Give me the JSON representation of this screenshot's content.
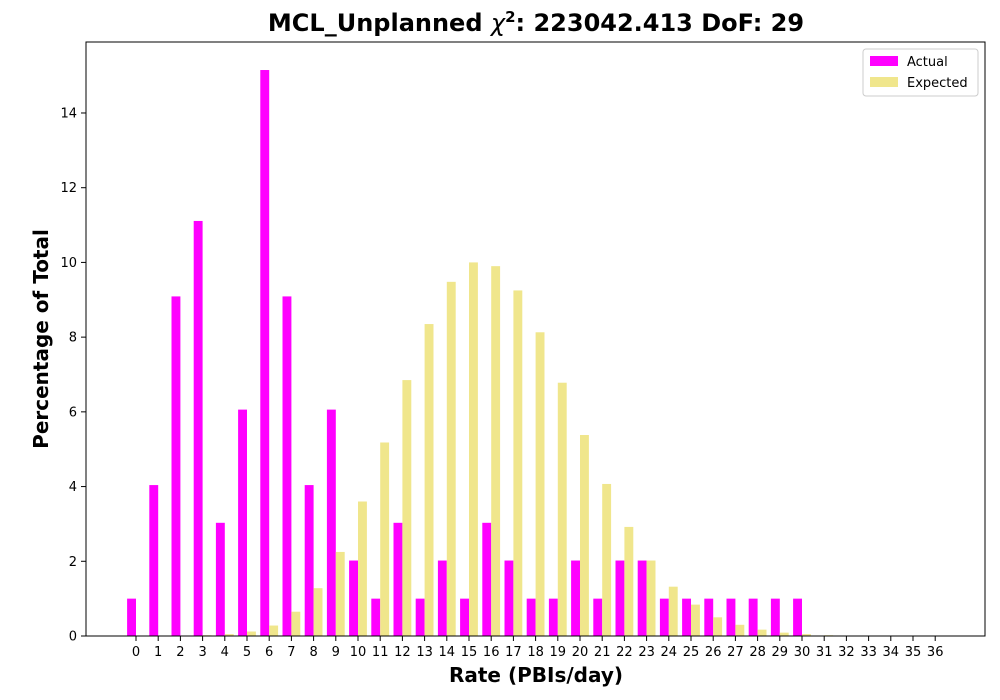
{
  "chart_data": {
    "type": "bar",
    "title_prefix": "MCL_Unplanned ",
    "title_chi": "χ",
    "title_sup": "2",
    "title_suffix": ": 223042.413 DoF: 29",
    "xlabel": "Rate (PBIs/day)",
    "ylabel": "Percentage of Total",
    "ylim": [
      0,
      15.9
    ],
    "yticks": [
      0,
      2,
      4,
      6,
      8,
      10,
      12,
      14
    ],
    "categories": [
      "0",
      "1",
      "2",
      "3",
      "4",
      "5",
      "6",
      "7",
      "8",
      "9",
      "10",
      "11",
      "12",
      "13",
      "14",
      "15",
      "16",
      "17",
      "18",
      "19",
      "20",
      "21",
      "22",
      "23",
      "24",
      "25",
      "26",
      "27",
      "28",
      "29",
      "30",
      "31",
      "32",
      "33",
      "34",
      "35",
      "36"
    ],
    "legend_position": "top-right",
    "grid": false,
    "series": [
      {
        "name": "Actual",
        "color": "#ff00ff",
        "values": [
          1.0,
          4.04,
          9.09,
          11.11,
          3.03,
          6.06,
          15.15,
          9.09,
          4.04,
          6.06,
          2.02,
          1.0,
          3.03,
          1.0,
          2.02,
          1.0,
          3.03,
          2.02,
          1.0,
          1.0,
          2.02,
          1.0,
          2.02,
          2.02,
          1.0,
          1.0,
          1.0,
          1.0,
          1.0,
          1.0,
          1.0,
          0,
          0,
          0,
          0,
          0,
          0
        ]
      },
      {
        "name": "Expected",
        "color": "#f0e68c",
        "values": [
          0,
          0,
          0.005,
          0.02,
          0.05,
          0.12,
          0.28,
          0.65,
          1.28,
          2.25,
          3.6,
          5.18,
          6.85,
          8.35,
          9.48,
          10.0,
          9.9,
          9.25,
          8.13,
          6.78,
          5.38,
          4.07,
          2.92,
          2.02,
          1.32,
          0.84,
          0.5,
          0.3,
          0.17,
          0.09,
          0.05,
          0.02,
          0.01,
          0.005,
          0.002,
          0.001,
          0
        ]
      }
    ]
  }
}
